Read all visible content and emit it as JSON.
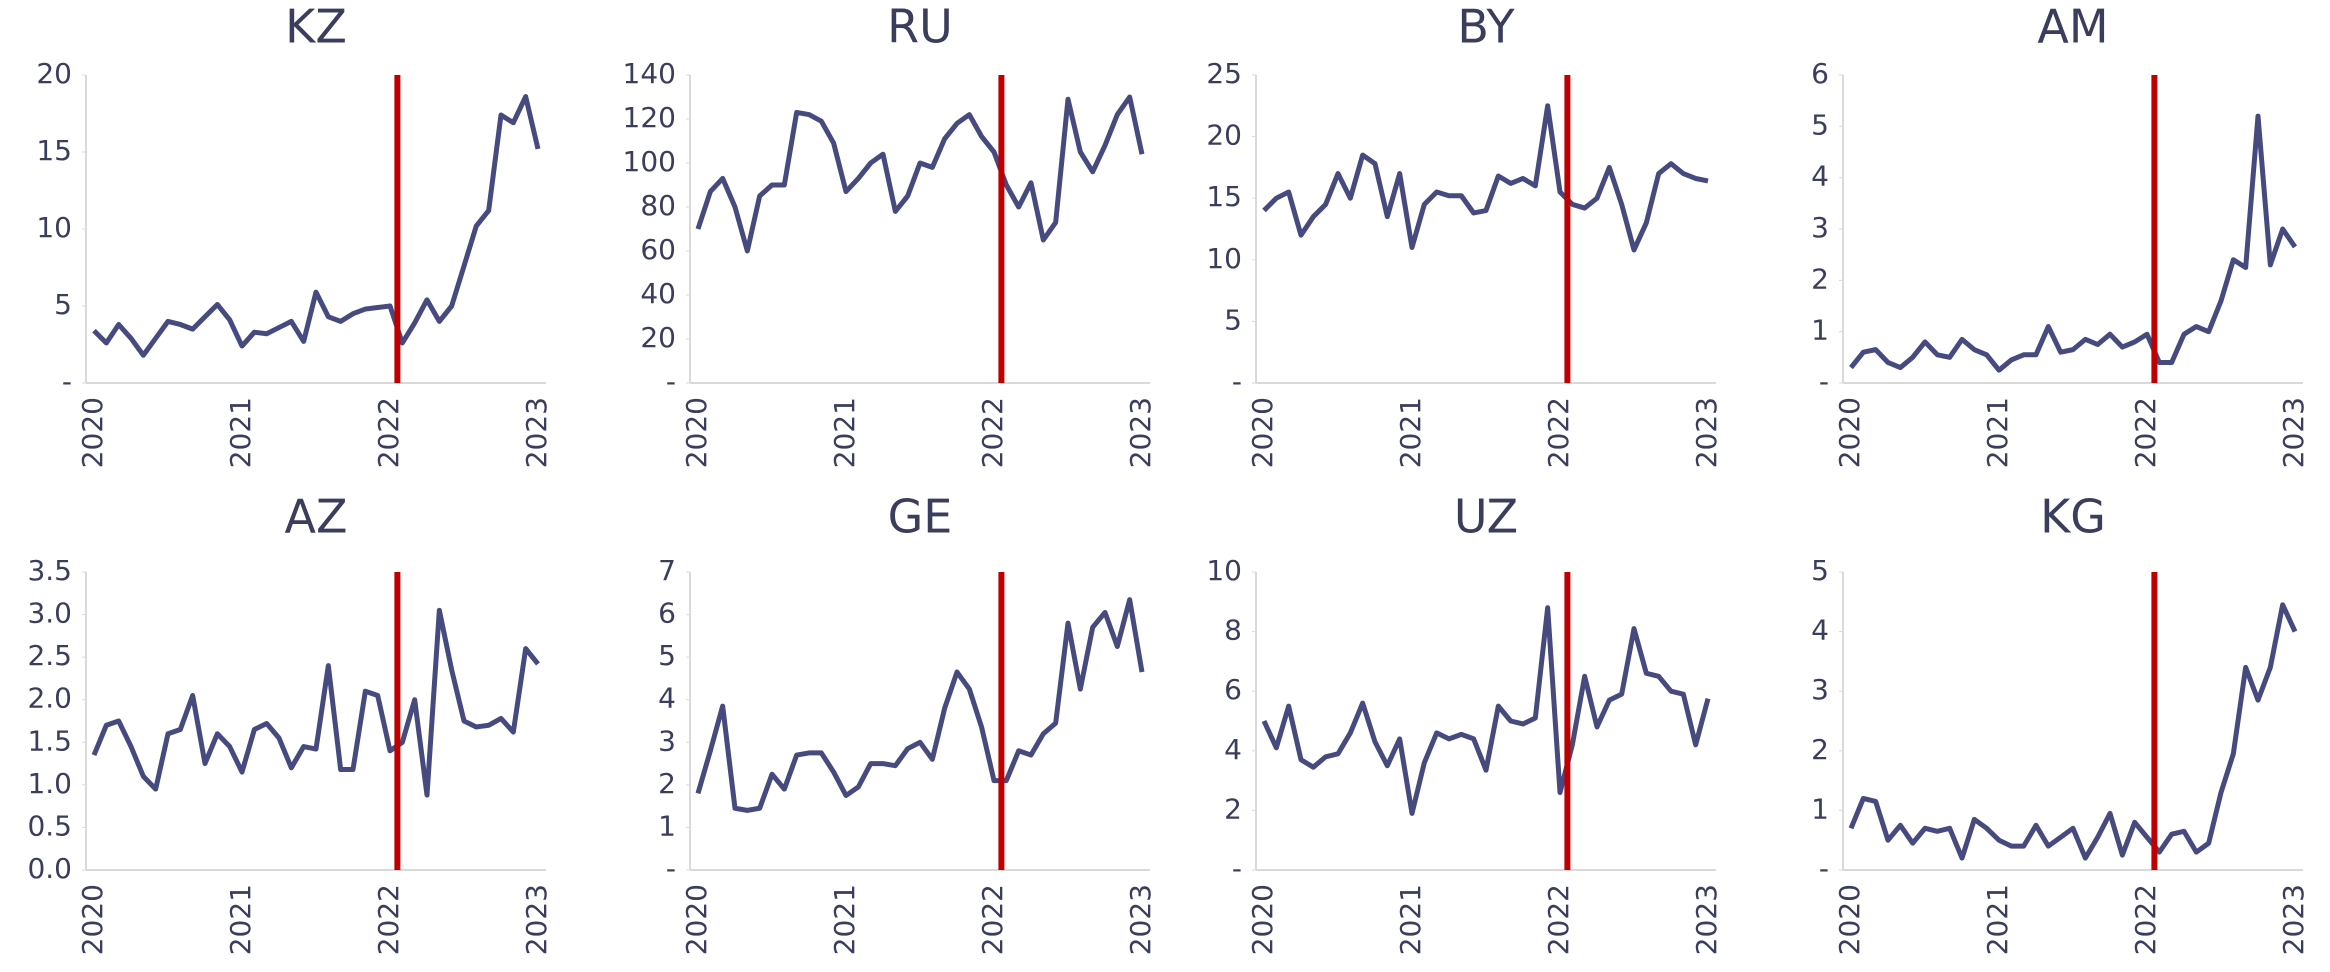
{
  "chart_data": [
    {
      "type": "line",
      "title": "KZ",
      "color": "#464a7e",
      "vline": {
        "index": 24.6,
        "color": "#c00000"
      },
      "categories": [
        "2020",
        null,
        null,
        null,
        null,
        null,
        null,
        null,
        null,
        null,
        null,
        null,
        "2021",
        null,
        null,
        null,
        null,
        null,
        null,
        null,
        null,
        null,
        null,
        null,
        "2022",
        null,
        null,
        null,
        null,
        null,
        null,
        null,
        null,
        null,
        null,
        null,
        "2023"
      ],
      "values": [
        3.4,
        2.6,
        3.8,
        2.9,
        1.8,
        2.9,
        4.0,
        3.8,
        3.5,
        4.3,
        5.1,
        4.1,
        2.4,
        3.3,
        3.2,
        3.6,
        4.0,
        2.7,
        5.9,
        4.3,
        4.0,
        4.5,
        4.8,
        4.9,
        5.0,
        2.6,
        3.9,
        5.4,
        4.0,
        5.0,
        7.6,
        10.2,
        11.2,
        17.4,
        16.9,
        18.6,
        15.2
      ],
      "ylim": [
        0,
        20
      ],
      "yticks": [
        {
          "value": 0,
          "label": "-"
        },
        5,
        10,
        15,
        20
      ]
    },
    {
      "type": "line",
      "title": "RU",
      "color": "#464a7e",
      "vline": {
        "index": 24.6,
        "color": "#c00000"
      },
      "categories": [
        "2020",
        null,
        null,
        null,
        null,
        null,
        null,
        null,
        null,
        null,
        null,
        null,
        "2021",
        null,
        null,
        null,
        null,
        null,
        null,
        null,
        null,
        null,
        null,
        null,
        "2022",
        null,
        null,
        null,
        null,
        null,
        null,
        null,
        null,
        null,
        null,
        null,
        "2023"
      ],
      "values": [
        70,
        87,
        93,
        80,
        60,
        85,
        90,
        90,
        123,
        122,
        119,
        109,
        87,
        93,
        100,
        104,
        78,
        85,
        100,
        98,
        111,
        118,
        122,
        112,
        105,
        90,
        80,
        91,
        65,
        73,
        129,
        105,
        96,
        108,
        122,
        130,
        104
      ],
      "ylim": [
        0,
        140
      ],
      "yticks": [
        {
          "value": 0,
          "label": "-"
        },
        20,
        40,
        60,
        80,
        100,
        120,
        140
      ]
    },
    {
      "type": "line",
      "title": "BY",
      "color": "#464a7e",
      "vline": {
        "index": 24.6,
        "color": "#c00000"
      },
      "categories": [
        "2020",
        null,
        null,
        null,
        null,
        null,
        null,
        null,
        null,
        null,
        null,
        null,
        "2021",
        null,
        null,
        null,
        null,
        null,
        null,
        null,
        null,
        null,
        null,
        null,
        "2022",
        null,
        null,
        null,
        null,
        null,
        null,
        null,
        null,
        null,
        null,
        null,
        "2023"
      ],
      "values": [
        14,
        15,
        15.5,
        12,
        13.5,
        14.5,
        17,
        15,
        18.5,
        17.8,
        13.5,
        17,
        11,
        14.5,
        15.5,
        15.2,
        15.2,
        13.8,
        14,
        16.8,
        16.2,
        16.6,
        16,
        22.5,
        15.5,
        14.5,
        14.2,
        15,
        17.5,
        14.5,
        10.8,
        13,
        17,
        17.8,
        17,
        16.6,
        16.4
      ],
      "ylim": [
        0,
        25
      ],
      "yticks": [
        {
          "value": 0,
          "label": "-"
        },
        5,
        10,
        15,
        20,
        25
      ]
    },
    {
      "type": "line",
      "title": "AM",
      "color": "#464a7e",
      "vline": {
        "index": 24.6,
        "color": "#c00000"
      },
      "categories": [
        "2020",
        null,
        null,
        null,
        null,
        null,
        null,
        null,
        null,
        null,
        null,
        null,
        "2021",
        null,
        null,
        null,
        null,
        null,
        null,
        null,
        null,
        null,
        null,
        null,
        "2022",
        null,
        null,
        null,
        null,
        null,
        null,
        null,
        null,
        null,
        null,
        null,
        "2023"
      ],
      "values": [
        0.3,
        0.6,
        0.65,
        0.4,
        0.3,
        0.5,
        0.8,
        0.55,
        0.5,
        0.85,
        0.65,
        0.55,
        0.25,
        0.45,
        0.55,
        0.55,
        1.1,
        0.6,
        0.65,
        0.85,
        0.75,
        0.95,
        0.7,
        0.8,
        0.95,
        0.4,
        0.4,
        0.95,
        1.1,
        1.0,
        1.6,
        2.4,
        2.25,
        5.2,
        2.3,
        3.0,
        2.65
      ],
      "ylim": [
        0,
        6
      ],
      "yticks": [
        {
          "value": 0,
          "label": "-"
        },
        1,
        2,
        3,
        4,
        5,
        6
      ]
    },
    {
      "type": "line",
      "title": "AZ",
      "color": "#464a7e",
      "vline": {
        "index": 24.6,
        "color": "#c00000"
      },
      "categories": [
        "2020",
        null,
        null,
        null,
        null,
        null,
        null,
        null,
        null,
        null,
        null,
        null,
        "2021",
        null,
        null,
        null,
        null,
        null,
        null,
        null,
        null,
        null,
        null,
        null,
        "2022",
        null,
        null,
        null,
        null,
        null,
        null,
        null,
        null,
        null,
        null,
        null,
        "2023"
      ],
      "values": [
        1.35,
        1.7,
        1.75,
        1.45,
        1.1,
        0.95,
        1.6,
        1.65,
        2.05,
        1.25,
        1.6,
        1.45,
        1.15,
        1.65,
        1.72,
        1.55,
        1.2,
        1.45,
        1.42,
        2.4,
        1.18,
        1.18,
        2.1,
        2.05,
        1.4,
        1.5,
        2.0,
        0.88,
        3.05,
        2.35,
        1.75,
        1.68,
        1.7,
        1.78,
        1.62,
        2.6,
        2.42
      ],
      "ylim": [
        0,
        3.5
      ],
      "yticks": [
        {
          "value": 0,
          "label": "0.0"
        },
        0.5,
        {
          "value": 1,
          "label": "1.0"
        },
        1.5,
        {
          "value": 2,
          "label": "2.0"
        },
        2.5,
        {
          "value": 3,
          "label": "3.0"
        },
        3.5
      ]
    },
    {
      "type": "line",
      "title": "GE",
      "color": "#464a7e",
      "vline": {
        "index": 24.6,
        "color": "#c00000"
      },
      "categories": [
        "2020",
        null,
        null,
        null,
        null,
        null,
        null,
        null,
        null,
        null,
        null,
        null,
        "2021",
        null,
        null,
        null,
        null,
        null,
        null,
        null,
        null,
        null,
        null,
        null,
        "2022",
        null,
        null,
        null,
        null,
        null,
        null,
        null,
        null,
        null,
        null,
        null,
        "2023"
      ],
      "values": [
        1.8,
        2.8,
        3.85,
        1.45,
        1.4,
        1.45,
        2.25,
        1.9,
        2.7,
        2.75,
        2.75,
        2.3,
        1.75,
        1.95,
        2.5,
        2.5,
        2.45,
        2.85,
        3.0,
        2.6,
        3.8,
        4.65,
        4.25,
        3.35,
        2.1,
        2.1,
        2.8,
        2.7,
        3.2,
        3.45,
        5.8,
        4.25,
        5.7,
        6.05,
        5.25,
        6.35,
        4.65
      ],
      "ylim": [
        0,
        7
      ],
      "yticks": [
        {
          "value": 0,
          "label": "-"
        },
        1,
        2,
        3,
        4,
        5,
        6,
        7
      ]
    },
    {
      "type": "line",
      "title": "UZ",
      "color": "#464a7e",
      "vline": {
        "index": 24.6,
        "color": "#c00000"
      },
      "categories": [
        "2020",
        null,
        null,
        null,
        null,
        null,
        null,
        null,
        null,
        null,
        null,
        null,
        "2021",
        null,
        null,
        null,
        null,
        null,
        null,
        null,
        null,
        null,
        null,
        null,
        "2022",
        null,
        null,
        null,
        null,
        null,
        null,
        null,
        null,
        null,
        null,
        null,
        "2023"
      ],
      "values": [
        5.0,
        4.1,
        5.5,
        3.7,
        3.45,
        3.8,
        3.9,
        4.6,
        5.6,
        4.3,
        3.5,
        4.4,
        1.9,
        3.6,
        4.6,
        4.4,
        4.55,
        4.4,
        3.35,
        5.5,
        5.0,
        4.9,
        5.1,
        8.8,
        2.6,
        4.2,
        6.5,
        4.8,
        5.7,
        5.9,
        8.1,
        6.6,
        6.5,
        6.0,
        5.9,
        4.2,
        5.75
      ],
      "ylim": [
        0,
        10
      ],
      "yticks": [
        {
          "value": 0,
          "label": "-"
        },
        2,
        4,
        6,
        8,
        10
      ]
    },
    {
      "type": "line",
      "title": "KG",
      "color": "#464a7e",
      "vline": {
        "index": 24.6,
        "color": "#c00000"
      },
      "categories": [
        "2020",
        null,
        null,
        null,
        null,
        null,
        null,
        null,
        null,
        null,
        null,
        null,
        "2021",
        null,
        null,
        null,
        null,
        null,
        null,
        null,
        null,
        null,
        null,
        null,
        "2022",
        null,
        null,
        null,
        null,
        null,
        null,
        null,
        null,
        null,
        null,
        null,
        "2023"
      ],
      "values": [
        0.7,
        1.2,
        1.15,
        0.5,
        0.75,
        0.45,
        0.7,
        0.65,
        0.7,
        0.2,
        0.85,
        0.7,
        0.5,
        0.4,
        0.4,
        0.75,
        0.4,
        0.55,
        0.7,
        0.2,
        0.55,
        0.95,
        0.25,
        0.8,
        0.55,
        0.3,
        0.6,
        0.65,
        0.3,
        0.45,
        1.3,
        1.95,
        3.4,
        2.85,
        3.4,
        4.45,
        4.0
      ],
      "ylim": [
        0,
        5
      ],
      "yticks": [
        {
          "value": 0,
          "label": "-"
        },
        1,
        2,
        3,
        4,
        5
      ]
    }
  ]
}
